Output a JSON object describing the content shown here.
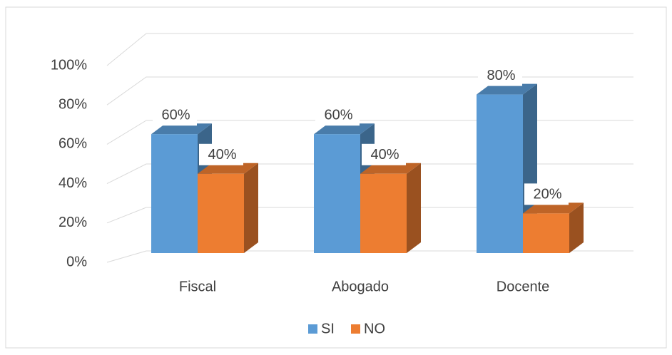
{
  "chart_data": {
    "type": "bar3d",
    "categories": [
      "Fiscal",
      "Abogado",
      "Docente"
    ],
    "series": [
      {
        "name": "SI",
        "color": "#5b9bd5",
        "values": [
          60,
          60,
          80
        ],
        "value_labels": [
          "60%",
          "60%",
          "80%"
        ]
      },
      {
        "name": "NO",
        "color": "#ed7d31",
        "values": [
          40,
          40,
          20
        ],
        "value_labels": [
          "40%",
          "40%",
          "20%"
        ]
      }
    ],
    "ylim": [
      0,
      100
    ],
    "yticks": [
      {
        "value": 0,
        "label": "0%"
      },
      {
        "value": 20,
        "label": "20%"
      },
      {
        "value": 40,
        "label": "40%"
      },
      {
        "value": 60,
        "label": "60%"
      },
      {
        "value": 80,
        "label": "80%"
      },
      {
        "value": 100,
        "label": "100%"
      }
    ],
    "grid": true,
    "legend": "bottom"
  }
}
